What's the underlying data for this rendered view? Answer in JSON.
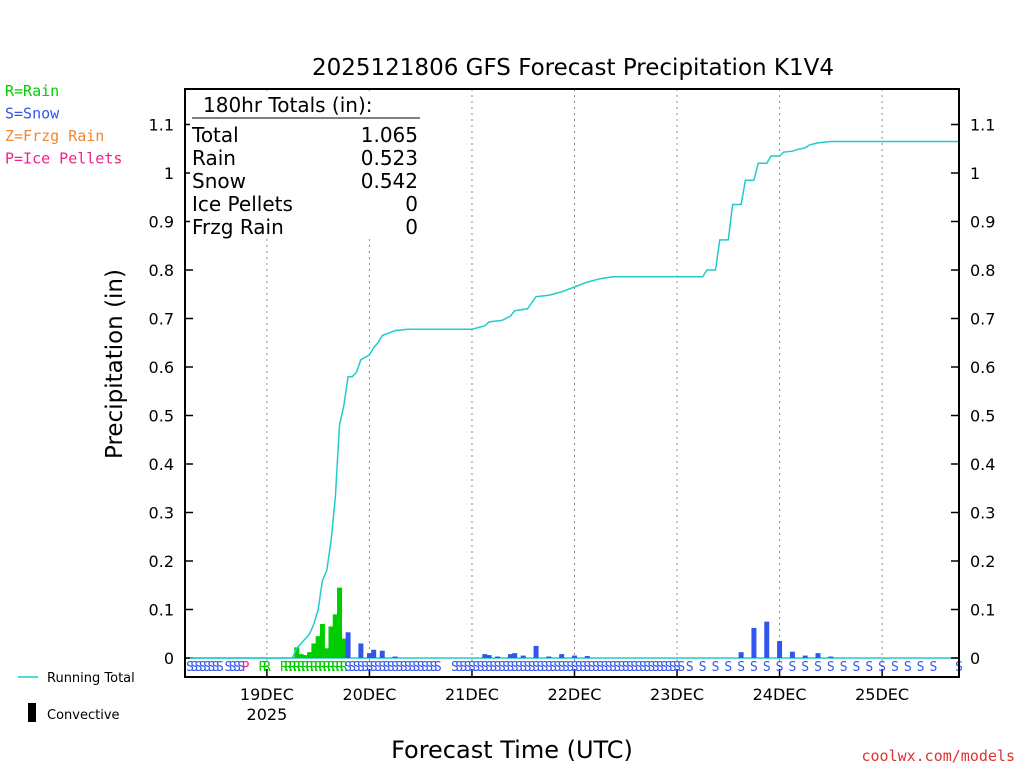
{
  "chart_data": {
    "type": "bar",
    "title": "2025121806 GFS Forecast Precipitation K1V4",
    "xlabel": "Forecast Time (UTC)",
    "ylabel": "Precipitation (in)",
    "ylim": [
      0,
      1.17
    ],
    "y_ticks": [
      "0",
      "0.1",
      "0.2",
      "0.3",
      "0.4",
      "0.5",
      "0.6",
      "0.7",
      "0.8",
      "0.9",
      "1",
      "1.1"
    ],
    "y_tick_values": [
      0,
      0.1,
      0.2,
      0.3,
      0.4,
      0.5,
      0.6,
      0.7,
      0.8,
      0.9,
      1.0,
      1.1
    ],
    "x_range_hours": [
      0,
      180
    ],
    "x_ticks": [
      {
        "label": "19DEC",
        "sublabel": "2025",
        "hour": 18
      },
      {
        "label": "20DEC",
        "hour": 42
      },
      {
        "label": "21DEC",
        "hour": 66
      },
      {
        "label": "22DEC",
        "hour": 90
      },
      {
        "label": "23DEC",
        "hour": 114
      },
      {
        "label": "24DEC",
        "hour": 138
      },
      {
        "label": "25DEC",
        "hour": 162
      }
    ],
    "legend_types": [
      {
        "code": "R",
        "label": "R=Rain",
        "color": "#00cc00"
      },
      {
        "code": "S",
        "label": "S=Snow",
        "color": "#3355ee"
      },
      {
        "code": "Z",
        "label": "Z=Frzg Rain",
        "color": "#ee8833"
      },
      {
        "code": "P",
        "label": "P=Ice Pellets",
        "color": "#ee2288"
      }
    ],
    "legend_lines": [
      {
        "label": "Running Total",
        "color": "#22cccc"
      },
      {
        "label": "Convective",
        "color": "#000000"
      }
    ],
    "totals_box": {
      "header": "180hr Totals (in):",
      "rows": [
        {
          "label": "Total",
          "value": "1.065"
        },
        {
          "label": "Rain",
          "value": "0.523"
        },
        {
          "label": "Snow",
          "value": "0.542"
        },
        {
          "label": "Ice Pellets",
          "value": "0"
        },
        {
          "label": "Frzg Rain",
          "value": "0"
        }
      ]
    },
    "rain_bars": [
      {
        "hour": 25,
        "value": 0.022
      },
      {
        "hour": 26,
        "value": 0.008
      },
      {
        "hour": 27,
        "value": 0.006
      },
      {
        "hour": 28,
        "value": 0.012
      },
      {
        "hour": 29,
        "value": 0.03
      },
      {
        "hour": 30,
        "value": 0.045
      },
      {
        "hour": 31,
        "value": 0.07
      },
      {
        "hour": 32,
        "value": 0.02
      },
      {
        "hour": 33,
        "value": 0.065
      },
      {
        "hour": 34,
        "value": 0.09
      },
      {
        "hour": 35,
        "value": 0.145
      },
      {
        "hour": 36,
        "value": 0.04
      }
    ],
    "snow_bars": [
      {
        "hour": 37,
        "value": 0.053
      },
      {
        "hour": 40,
        "value": 0.03
      },
      {
        "hour": 42,
        "value": 0.01
      },
      {
        "hour": 43,
        "value": 0.017
      },
      {
        "hour": 45,
        "value": 0.015
      },
      {
        "hour": 48,
        "value": 0.003
      },
      {
        "hour": 69,
        "value": 0.008
      },
      {
        "hour": 70,
        "value": 0.006
      },
      {
        "hour": 72,
        "value": 0.003
      },
      {
        "hour": 75,
        "value": 0.008
      },
      {
        "hour": 76,
        "value": 0.01
      },
      {
        "hour": 78,
        "value": 0.005
      },
      {
        "hour": 81,
        "value": 0.025
      },
      {
        "hour": 84,
        "value": 0.003
      },
      {
        "hour": 87,
        "value": 0.008
      },
      {
        "hour": 90,
        "value": 0.005
      },
      {
        "hour": 93,
        "value": 0.004
      },
      {
        "hour": 129,
        "value": 0.012
      },
      {
        "hour": 132,
        "value": 0.062
      },
      {
        "hour": 135,
        "value": 0.075
      },
      {
        "hour": 138,
        "value": 0.035
      },
      {
        "hour": 141,
        "value": 0.013
      },
      {
        "hour": 144,
        "value": 0.005
      },
      {
        "hour": 147,
        "value": 0.01
      },
      {
        "hour": 150,
        "value": 0.003
      }
    ],
    "running_total": [
      {
        "hour": 0,
        "value": 0
      },
      {
        "hour": 24,
        "value": 0
      },
      {
        "hour": 25,
        "value": 0.02
      },
      {
        "hour": 26,
        "value": 0.03
      },
      {
        "hour": 27,
        "value": 0.04
      },
      {
        "hour": 28,
        "value": 0.05
      },
      {
        "hour": 29,
        "value": 0.07
      },
      {
        "hour": 30,
        "value": 0.1
      },
      {
        "hour": 31,
        "value": 0.16
      },
      {
        "hour": 32,
        "value": 0.18
      },
      {
        "hour": 33,
        "value": 0.24
      },
      {
        "hour": 34,
        "value": 0.33
      },
      {
        "hour": 35,
        "value": 0.48
      },
      {
        "hour": 36,
        "value": 0.52
      },
      {
        "hour": 37,
        "value": 0.58
      },
      {
        "hour": 38,
        "value": 0.58
      },
      {
        "hour": 39,
        "value": 0.59
      },
      {
        "hour": 40,
        "value": 0.615
      },
      {
        "hour": 41,
        "value": 0.62
      },
      {
        "hour": 42,
        "value": 0.625
      },
      {
        "hour": 43,
        "value": 0.64
      },
      {
        "hour": 44,
        "value": 0.65
      },
      {
        "hour": 45,
        "value": 0.665
      },
      {
        "hour": 48,
        "value": 0.675
      },
      {
        "hour": 51,
        "value": 0.678
      },
      {
        "hour": 66,
        "value": 0.678
      },
      {
        "hour": 69,
        "value": 0.685
      },
      {
        "hour": 70,
        "value": 0.693
      },
      {
        "hour": 73,
        "value": 0.696
      },
      {
        "hour": 75,
        "value": 0.705
      },
      {
        "hour": 76,
        "value": 0.716
      },
      {
        "hour": 79,
        "value": 0.72
      },
      {
        "hour": 81,
        "value": 0.745
      },
      {
        "hour": 84,
        "value": 0.748
      },
      {
        "hour": 87,
        "value": 0.755
      },
      {
        "hour": 90,
        "value": 0.765
      },
      {
        "hour": 93,
        "value": 0.775
      },
      {
        "hour": 96,
        "value": 0.782
      },
      {
        "hour": 99,
        "value": 0.786
      },
      {
        "hour": 120,
        "value": 0.786
      },
      {
        "hour": 121,
        "value": 0.8
      },
      {
        "hour": 123,
        "value": 0.8
      },
      {
        "hour": 124,
        "value": 0.862
      },
      {
        "hour": 126,
        "value": 0.862
      },
      {
        "hour": 127,
        "value": 0.935
      },
      {
        "hour": 129,
        "value": 0.935
      },
      {
        "hour": 130,
        "value": 0.985
      },
      {
        "hour": 132,
        "value": 0.985
      },
      {
        "hour": 133,
        "value": 1.02
      },
      {
        "hour": 135,
        "value": 1.02
      },
      {
        "hour": 136,
        "value": 1.035
      },
      {
        "hour": 138,
        "value": 1.035
      },
      {
        "hour": 139,
        "value": 1.043
      },
      {
        "hour": 141,
        "value": 1.045
      },
      {
        "hour": 142,
        "value": 1.048
      },
      {
        "hour": 144,
        "value": 1.052
      },
      {
        "hour": 145,
        "value": 1.058
      },
      {
        "hour": 147,
        "value": 1.062
      },
      {
        "hour": 150,
        "value": 1.065
      },
      {
        "hour": 180,
        "value": 1.065
      }
    ],
    "type_codes": [
      {
        "hour": 0,
        "code": "S"
      },
      {
        "hour": 1,
        "code": "S"
      },
      {
        "hour": 2,
        "code": "S"
      },
      {
        "hour": 3,
        "code": "S"
      },
      {
        "hour": 4,
        "code": "S"
      },
      {
        "hour": 5,
        "code": "S"
      },
      {
        "hour": 6,
        "code": "S"
      },
      {
        "hour": 7,
        "code": "S"
      },
      {
        "hour": 9,
        "code": "S"
      },
      {
        "hour": 10,
        "code": "S"
      },
      {
        "hour": 11,
        "code": "S"
      },
      {
        "hour": 12,
        "code": "S"
      },
      {
        "hour": 13,
        "code": "P"
      },
      {
        "hour": 17,
        "code": "R"
      },
      {
        "hour": 18,
        "code": "R"
      },
      {
        "hour": 22,
        "code": "R"
      },
      {
        "hour": 23,
        "code": "R"
      },
      {
        "hour": 24,
        "code": "R"
      },
      {
        "hour": 25,
        "code": "R"
      },
      {
        "hour": 26,
        "code": "R"
      },
      {
        "hour": 27,
        "code": "R"
      },
      {
        "hour": 28,
        "code": "R"
      },
      {
        "hour": 29,
        "code": "R"
      },
      {
        "hour": 30,
        "code": "R"
      },
      {
        "hour": 31,
        "code": "R"
      },
      {
        "hour": 32,
        "code": "R"
      },
      {
        "hour": 33,
        "code": "R"
      },
      {
        "hour": 34,
        "code": "R"
      },
      {
        "hour": 35,
        "code": "R"
      },
      {
        "hour": 36,
        "code": "R"
      },
      {
        "hour": 37,
        "code": "S"
      },
      {
        "hour": 38,
        "code": "S"
      },
      {
        "hour": 39,
        "code": "S"
      },
      {
        "hour": 40,
        "code": "S"
      },
      {
        "hour": 41,
        "code": "S"
      },
      {
        "hour": 42,
        "code": "S"
      },
      {
        "hour": 43,
        "code": "S"
      },
      {
        "hour": 44,
        "code": "S"
      },
      {
        "hour": 45,
        "code": "S"
      },
      {
        "hour": 46,
        "code": "S"
      },
      {
        "hour": 47,
        "code": "S"
      },
      {
        "hour": 48,
        "code": "S"
      },
      {
        "hour": 49,
        "code": "S"
      },
      {
        "hour": 50,
        "code": "S"
      },
      {
        "hour": 51,
        "code": "S"
      },
      {
        "hour": 52,
        "code": "S"
      },
      {
        "hour": 53,
        "code": "S"
      },
      {
        "hour": 54,
        "code": "S"
      },
      {
        "hour": 55,
        "code": "S"
      },
      {
        "hour": 56,
        "code": "S"
      },
      {
        "hour": 57,
        "code": "S"
      },
      {
        "hour": 58,
        "code": "S"
      },
      {
        "hour": 62,
        "code": "S"
      },
      {
        "hour": 63,
        "code": "S"
      },
      {
        "hour": 64,
        "code": "S"
      },
      {
        "hour": 65,
        "code": "S"
      },
      {
        "hour": 66,
        "code": "S"
      },
      {
        "hour": 67,
        "code": "S"
      },
      {
        "hour": 68,
        "code": "S"
      },
      {
        "hour": 69,
        "code": "S"
      },
      {
        "hour": 70,
        "code": "S"
      },
      {
        "hour": 71,
        "code": "S"
      },
      {
        "hour": 72,
        "code": "S"
      },
      {
        "hour": 73,
        "code": "S"
      },
      {
        "hour": 74,
        "code": "S"
      },
      {
        "hour": 75,
        "code": "S"
      },
      {
        "hour": 76,
        "code": "S"
      },
      {
        "hour": 77,
        "code": "S"
      },
      {
        "hour": 78,
        "code": "S"
      },
      {
        "hour": 79,
        "code": "S"
      },
      {
        "hour": 80,
        "code": "S"
      },
      {
        "hour": 81,
        "code": "S"
      },
      {
        "hour": 82,
        "code": "S"
      },
      {
        "hour": 83,
        "code": "S"
      },
      {
        "hour": 84,
        "code": "S"
      },
      {
        "hour": 85,
        "code": "S"
      },
      {
        "hour": 86,
        "code": "S"
      },
      {
        "hour": 87,
        "code": "S"
      },
      {
        "hour": 88,
        "code": "S"
      },
      {
        "hour": 89,
        "code": "S"
      },
      {
        "hour": 90,
        "code": "S"
      },
      {
        "hour": 91,
        "code": "S"
      },
      {
        "hour": 92,
        "code": "S"
      },
      {
        "hour": 93,
        "code": "S"
      },
      {
        "hour": 94,
        "code": "S"
      },
      {
        "hour": 95,
        "code": "S"
      },
      {
        "hour": 96,
        "code": "S"
      },
      {
        "hour": 97,
        "code": "S"
      },
      {
        "hour": 98,
        "code": "S"
      },
      {
        "hour": 99,
        "code": "S"
      },
      {
        "hour": 100,
        "code": "S"
      },
      {
        "hour": 101,
        "code": "S"
      },
      {
        "hour": 102,
        "code": "S"
      },
      {
        "hour": 103,
        "code": "S"
      },
      {
        "hour": 104,
        "code": "S"
      },
      {
        "hour": 105,
        "code": "S"
      },
      {
        "hour": 106,
        "code": "S"
      },
      {
        "hour": 107,
        "code": "S"
      },
      {
        "hour": 108,
        "code": "S"
      },
      {
        "hour": 109,
        "code": "S"
      },
      {
        "hour": 110,
        "code": "S"
      },
      {
        "hour": 111,
        "code": "S"
      },
      {
        "hour": 112,
        "code": "S"
      },
      {
        "hour": 113,
        "code": "S"
      },
      {
        "hour": 114,
        "code": "S"
      },
      {
        "hour": 115,
        "code": "S"
      },
      {
        "hour": 117,
        "code": "S"
      },
      {
        "hour": 120,
        "code": "S"
      },
      {
        "hour": 123,
        "code": "S"
      },
      {
        "hour": 126,
        "code": "S"
      },
      {
        "hour": 129,
        "code": "S"
      },
      {
        "hour": 132,
        "code": "S"
      },
      {
        "hour": 135,
        "code": "S"
      },
      {
        "hour": 138,
        "code": "S"
      },
      {
        "hour": 141,
        "code": "S"
      },
      {
        "hour": 144,
        "code": "S"
      },
      {
        "hour": 147,
        "code": "S"
      },
      {
        "hour": 150,
        "code": "S"
      },
      {
        "hour": 153,
        "code": "S"
      },
      {
        "hour": 156,
        "code": "S"
      },
      {
        "hour": 159,
        "code": "S"
      },
      {
        "hour": 162,
        "code": "S"
      },
      {
        "hour": 165,
        "code": "S"
      },
      {
        "hour": 168,
        "code": "S"
      },
      {
        "hour": 171,
        "code": "S"
      },
      {
        "hour": 174,
        "code": "S"
      },
      {
        "hour": 180,
        "code": "S"
      }
    ],
    "credit": "coolwx.com/models",
    "colors": {
      "rain": "#00cc00",
      "snow": "#3355ee",
      "frzg": "#ee8833",
      "pellets": "#ee2288",
      "running_total": "#22cccc",
      "credit": "#dd3333"
    }
  }
}
